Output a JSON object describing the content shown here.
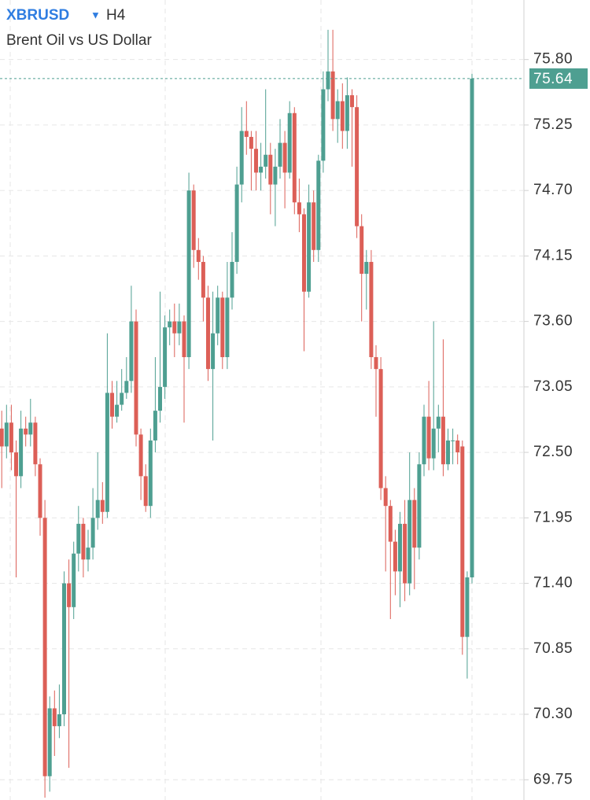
{
  "chart_data": {
    "type": "candlestick",
    "symbol": "XBRUSD",
    "timeframe": "H4",
    "subtitle": "Brent Oil vs US Dollar",
    "up_color": "#4e9f91",
    "down_color": "#dc5f57",
    "grid": true,
    "last_price": 75.64,
    "ylim": [
      69.58,
      76.3
    ],
    "yticks": [
      {
        "value": 75.8,
        "label": "75.80"
      },
      75.25,
      {
        "value": 74.7,
        "label": "74.70"
      },
      74.15,
      {
        "value": 73.6,
        "label": "73.60"
      },
      73.05,
      {
        "value": 72.5,
        "label": "72.50"
      },
      71.95,
      {
        "value": 71.4,
        "label": "71.40"
      },
      70.85,
      {
        "value": 70.3,
        "label": "70.30"
      },
      69.75
    ],
    "open": [
      72.7,
      72.55,
      72.75,
      72.5,
      72.3,
      72.7,
      72.65,
      72.75,
      72.4,
      71.95,
      69.78,
      70.35,
      70.2,
      70.3,
      71.4,
      71.2,
      71.65,
      71.9,
      71.6,
      71.7,
      71.95,
      72.1,
      72.0,
      73.0,
      72.8,
      72.9,
      73.0,
      73.1,
      73.6,
      72.65,
      72.3,
      72.05,
      72.6,
      72.85,
      73.05,
      73.55,
      73.6,
      73.5,
      73.6,
      73.3,
      74.7,
      74.2,
      74.1,
      73.8,
      73.2,
      73.5,
      73.8,
      73.3,
      73.8,
      74.1,
      74.75,
      75.2,
      75.15,
      75.05,
      74.85,
      74.9,
      75.0,
      74.75,
      74.9,
      75.1,
      74.85,
      75.35,
      74.6,
      74.5,
      73.85,
      74.6,
      74.2,
      74.95,
      75.55,
      75.7,
      75.3,
      75.45,
      75.2,
      75.5,
      75.4,
      74.4,
      74.0,
      74.1,
      73.3,
      73.2,
      72.2,
      72.05,
      71.75,
      71.5,
      71.9,
      71.4,
      72.1,
      71.7,
      72.4,
      72.8,
      72.45,
      72.7,
      72.8,
      72.4,
      72.6,
      72.6,
      72.55,
      70.95,
      71.45
    ],
    "high": [
      72.85,
      72.9,
      72.9,
      72.6,
      72.85,
      72.8,
      72.95,
      72.8,
      72.45,
      72.1,
      70.45,
      70.5,
      70.55,
      71.5,
      71.6,
      71.75,
      72.05,
      71.95,
      71.85,
      72.2,
      72.5,
      72.25,
      73.5,
      73.1,
      73.1,
      73.2,
      73.3,
      73.9,
      73.7,
      72.7,
      72.4,
      72.7,
      73.3,
      73.85,
      73.65,
      73.7,
      73.75,
      73.75,
      73.65,
      74.85,
      74.75,
      74.3,
      74.15,
      73.9,
      73.85,
      73.9,
      73.85,
      74.1,
      74.35,
      74.9,
      75.4,
      75.45,
      75.2,
      75.2,
      75.1,
      75.55,
      75.1,
      75.05,
      75.3,
      75.2,
      75.45,
      75.4,
      74.8,
      74.55,
      74.75,
      74.7,
      75.0,
      75.7,
      76.05,
      76.05,
      75.55,
      75.6,
      75.65,
      75.55,
      75.5,
      74.5,
      74.2,
      74.2,
      73.4,
      73.3,
      72.3,
      72.1,
      71.85,
      72.0,
      72.1,
      72.5,
      72.2,
      72.5,
      72.9,
      73.1,
      73.6,
      72.9,
      73.45,
      72.7,
      72.7,
      72.65,
      72.6,
      71.5,
      75.68
    ],
    "low": [
      72.2,
      72.45,
      72.35,
      71.45,
      72.2,
      72.55,
      72.55,
      72.3,
      71.8,
      69.6,
      69.65,
      69.95,
      70.1,
      70.2,
      69.85,
      71.1,
      71.5,
      71.45,
      71.5,
      71.6,
      71.85,
      71.9,
      71.95,
      72.7,
      72.75,
      72.85,
      72.95,
      73.0,
      72.55,
      72.1,
      72.0,
      71.95,
      72.5,
      72.75,
      72.95,
      73.4,
      73.3,
      73.4,
      72.75,
      73.2,
      74.05,
      73.95,
      73.6,
      73.1,
      72.6,
      73.4,
      73.2,
      73.2,
      73.7,
      74.0,
      74.6,
      75.0,
      74.7,
      74.7,
      74.7,
      74.8,
      74.5,
      74.4,
      74.8,
      74.55,
      74.8,
      74.5,
      74.35,
      73.35,
      73.8,
      74.1,
      74.1,
      74.85,
      75.45,
      75.2,
      75.1,
      75.05,
      75.05,
      74.9,
      74.3,
      73.6,
      73.7,
      73.2,
      72.8,
      72.1,
      71.5,
      71.1,
      71.3,
      71.2,
      71.25,
      71.3,
      71.35,
      71.6,
      72.3,
      72.35,
      72.35,
      72.5,
      72.3,
      72.35,
      72.4,
      72.4,
      70.8,
      70.6,
      71.4
    ],
    "close": [
      72.55,
      72.75,
      72.5,
      72.3,
      72.7,
      72.65,
      72.75,
      72.4,
      71.95,
      69.78,
      70.35,
      70.2,
      70.3,
      71.4,
      71.2,
      71.65,
      71.9,
      71.6,
      71.7,
      71.95,
      72.1,
      72.0,
      73.0,
      72.8,
      72.9,
      73.0,
      73.1,
      73.6,
      72.65,
      72.3,
      72.05,
      72.6,
      72.85,
      73.05,
      73.55,
      73.6,
      73.5,
      73.6,
      73.3,
      74.7,
      74.2,
      74.1,
      73.8,
      73.2,
      73.5,
      73.8,
      73.3,
      73.8,
      74.1,
      74.75,
      75.2,
      75.15,
      75.05,
      74.85,
      74.9,
      75.0,
      74.75,
      74.9,
      75.1,
      74.85,
      75.35,
      74.6,
      74.5,
      73.85,
      74.6,
      74.2,
      74.95,
      75.55,
      75.7,
      75.3,
      75.45,
      75.2,
      75.5,
      75.4,
      74.4,
      74.0,
      74.1,
      73.3,
      73.2,
      72.2,
      72.05,
      71.75,
      71.5,
      71.9,
      71.4,
      72.1,
      71.7,
      72.4,
      72.8,
      72.45,
      72.7,
      72.8,
      72.4,
      72.6,
      72.6,
      72.5,
      70.95,
      71.45,
      75.64
    ]
  }
}
